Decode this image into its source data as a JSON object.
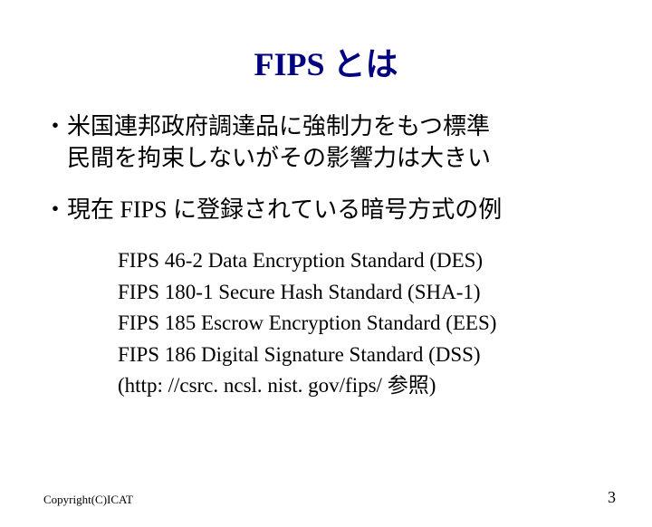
{
  "title": "FIPS とは",
  "bullets": {
    "b1_line1": "・米国連邦政府調達品に強制力をもつ標準",
    "b1_line2": "　民間を拘束しないがその影響力は大きい",
    "b2": "・現在 FIPS に登録されている暗号方式の例"
  },
  "sublist": {
    "s1": "FIPS 46-2   Data Encryption Standard (DES)",
    "s2": "FIPS 180-1 Secure Hash Standard (SHA-1)",
    "s3": "FIPS 185    Escrow Encryption Standard (EES)",
    "s4": "FIPS 186    Digital Signature Standard (DSS)",
    "s5": "(http: //csrc. ncsl. nist. gov/fips/ 参照)"
  },
  "copyright": "Copyright(C)ICAT",
  "pagenum": "3",
  "colors": {
    "title_color": "#000080",
    "text_color": "#000000",
    "background": "#ffffff"
  },
  "fonts": {
    "title_size": 36,
    "bullet_size": 26,
    "sub_size": 23,
    "copyright_size": 13,
    "pagenum_size": 18
  }
}
